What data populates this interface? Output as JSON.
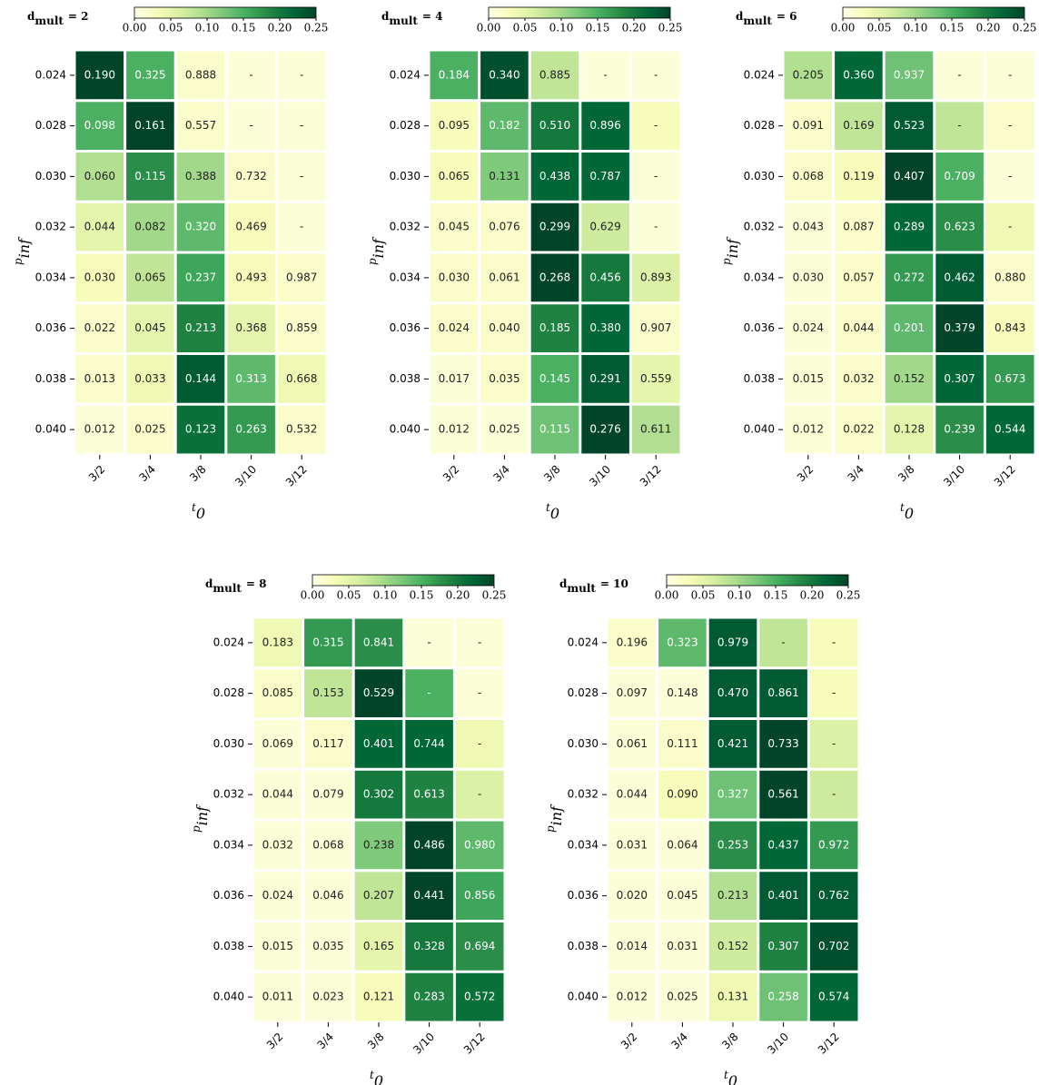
{
  "chart_data": [
    {
      "type": "heatmap",
      "colormap": "YlGn",
      "title": {
        "base": "d",
        "subscript": "mult",
        "suffix": "= 2"
      },
      "ylabel": {
        "base": "p",
        "subscript": "inf"
      },
      "xlabel": {
        "base": "t",
        "subscript": "0"
      },
      "y_categories": [
        "0.024",
        "0.028",
        "0.030",
        "0.032",
        "0.034",
        "0.036",
        "0.038",
        "0.040"
      ],
      "x_categories": [
        "3/2",
        "3/4",
        "3/8",
        "3/10",
        "3/12"
      ],
      "clim": [
        0,
        0.25
      ],
      "cticks": [
        {
          "value": 0,
          "label": "0.00"
        },
        {
          "value": 0.05,
          "label": "0.05"
        },
        {
          "value": 0.1,
          "label": "0.10"
        },
        {
          "value": 0.15,
          "label": "0.15"
        },
        {
          "value": 0.2,
          "label": "0.20"
        },
        {
          "value": 0.25,
          "label": "0.25"
        }
      ],
      "values": [
        [
          0.25,
          0.15,
          0.02,
          0.01,
          0.01
        ],
        [
          0.15,
          0.25,
          0.02,
          0.01,
          0.01
        ],
        [
          0.09,
          0.18,
          0.1,
          0.02,
          0.01
        ],
        [
          0.05,
          0.1,
          0.14,
          0.03,
          0.01
        ],
        [
          0.03,
          0.08,
          0.16,
          0.03,
          0.02
        ],
        [
          0.02,
          0.05,
          0.19,
          0.05,
          0.02
        ],
        [
          0.02,
          0.04,
          0.23,
          0.14,
          0.04
        ],
        [
          0.01,
          0.02,
          0.21,
          0.17,
          0.02
        ]
      ],
      "cell_labels": [
        [
          "0.190",
          "0.325",
          "0.888",
          "-",
          "-"
        ],
        [
          "0.098",
          "0.161",
          "0.557",
          "-",
          "-"
        ],
        [
          "0.060",
          "0.115",
          "0.388",
          "0.732",
          "-"
        ],
        [
          "0.044",
          "0.082",
          "0.320",
          "0.469",
          "-"
        ],
        [
          "0.030",
          "0.065",
          "0.237",
          "0.493",
          "0.987"
        ],
        [
          "0.022",
          "0.045",
          "0.213",
          "0.368",
          "0.859"
        ],
        [
          "0.013",
          "0.033",
          "0.144",
          "0.313",
          "0.668"
        ],
        [
          "0.012",
          "0.025",
          "0.123",
          "0.263",
          "0.532"
        ]
      ]
    },
    {
      "type": "heatmap",
      "colormap": "YlGn",
      "title": {
        "base": "d",
        "subscript": "mult",
        "suffix": "= 4"
      },
      "ylabel": {
        "base": "p",
        "subscript": "inf"
      },
      "xlabel": {
        "base": "t",
        "subscript": "0"
      },
      "y_categories": [
        "0.024",
        "0.028",
        "0.030",
        "0.032",
        "0.034",
        "0.036",
        "0.038",
        "0.040"
      ],
      "x_categories": [
        "3/2",
        "3/4",
        "3/8",
        "3/10",
        "3/12"
      ],
      "clim": [
        0,
        0.25
      ],
      "cticks": [
        {
          "value": 0,
          "label": "0.00"
        },
        {
          "value": 0.05,
          "label": "0.05"
        },
        {
          "value": 0.1,
          "label": "0.10"
        },
        {
          "value": 0.15,
          "label": "0.15"
        },
        {
          "value": 0.2,
          "label": "0.20"
        },
        {
          "value": 0.25,
          "label": "0.25"
        }
      ],
      "values": [
        [
          0.15,
          0.24,
          0.08,
          0.01,
          0.01
        ],
        [
          0.03,
          0.14,
          0.2,
          0.22,
          0.03
        ],
        [
          0.03,
          0.12,
          0.22,
          0.22,
          0.01
        ],
        [
          0.02,
          0.02,
          0.25,
          0.07,
          0.01
        ],
        [
          0.02,
          0.02,
          0.25,
          0.2,
          0.06
        ],
        [
          0.02,
          0.02,
          0.19,
          0.22,
          0.02
        ],
        [
          0.01,
          0.02,
          0.15,
          0.23,
          0.05
        ],
        [
          0.01,
          0.01,
          0.13,
          0.25,
          0.09
        ]
      ],
      "cell_labels": [
        [
          "0.184",
          "0.340",
          "0.885",
          "-",
          "-"
        ],
        [
          "0.095",
          "0.182",
          "0.510",
          "0.896",
          "-"
        ],
        [
          "0.065",
          "0.131",
          "0.438",
          "0.787",
          "-"
        ],
        [
          "0.045",
          "0.076",
          "0.299",
          "0.629",
          "-"
        ],
        [
          "0.030",
          "0.061",
          "0.268",
          "0.456",
          "0.893"
        ],
        [
          "0.024",
          "0.040",
          "0.185",
          "0.380",
          "0.907"
        ],
        [
          "0.017",
          "0.035",
          "0.145",
          "0.291",
          "0.559"
        ],
        [
          "0.012",
          "0.025",
          "0.115",
          "0.276",
          "0.611"
        ]
      ]
    },
    {
      "type": "heatmap",
      "colormap": "YlGn",
      "title": {
        "base": "d",
        "subscript": "mult",
        "suffix": "= 6"
      },
      "ylabel": {
        "base": "p",
        "subscript": "inf"
      },
      "xlabel": {
        "base": "t",
        "subscript": "0"
      },
      "y_categories": [
        "0.024",
        "0.028",
        "0.030",
        "0.032",
        "0.034",
        "0.036",
        "0.038",
        "0.040"
      ],
      "x_categories": [
        "3/2",
        "3/4",
        "3/8",
        "3/10",
        "3/12"
      ],
      "clim": [
        0,
        0.25
      ],
      "cticks": [
        {
          "value": 0,
          "label": "0.00"
        },
        {
          "value": 0.05,
          "label": "0.05"
        },
        {
          "value": 0.1,
          "label": "0.10"
        },
        {
          "value": 0.15,
          "label": "0.15"
        },
        {
          "value": 0.2,
          "label": "0.20"
        },
        {
          "value": 0.25,
          "label": "0.25"
        }
      ],
      "values": [
        [
          0.09,
          0.22,
          0.13,
          0.01,
          0.01
        ],
        [
          0.02,
          0.08,
          0.23,
          0.08,
          0.02
        ],
        [
          0.02,
          0.03,
          0.25,
          0.15,
          0.01
        ],
        [
          0.01,
          0.02,
          0.22,
          0.18,
          0.04
        ],
        [
          0.01,
          0.02,
          0.17,
          0.23,
          0.02
        ],
        [
          0.01,
          0.02,
          0.14,
          0.25,
          0.03
        ],
        [
          0.01,
          0.02,
          0.1,
          0.22,
          0.17
        ],
        [
          0.01,
          0.02,
          0.05,
          0.18,
          0.22
        ]
      ],
      "cell_labels": [
        [
          "0.205",
          "0.360",
          "0.937",
          "-",
          "-"
        ],
        [
          "0.091",
          "0.169",
          "0.523",
          "-",
          "-"
        ],
        [
          "0.068",
          "0.119",
          "0.407",
          "0.709",
          "-"
        ],
        [
          "0.043",
          "0.087",
          "0.289",
          "0.623",
          "-"
        ],
        [
          "0.030",
          "0.057",
          "0.272",
          "0.462",
          "0.880"
        ],
        [
          "0.024",
          "0.044",
          "0.201",
          "0.379",
          "0.843"
        ],
        [
          "0.015",
          "0.032",
          "0.152",
          "0.307",
          "0.673"
        ],
        [
          "0.012",
          "0.022",
          "0.128",
          "0.239",
          "0.544"
        ]
      ]
    },
    {
      "type": "heatmap",
      "colormap": "YlGn",
      "title": {
        "base": "d",
        "subscript": "mult",
        "suffix": "= 8"
      },
      "ylabel": {
        "base": "p",
        "subscript": "inf"
      },
      "xlabel": {
        "base": "t",
        "subscript": "0"
      },
      "y_categories": [
        "0.024",
        "0.028",
        "0.030",
        "0.032",
        "0.034",
        "0.036",
        "0.038",
        "0.040"
      ],
      "x_categories": [
        "3/2",
        "3/4",
        "3/8",
        "3/10",
        "3/12"
      ],
      "clim": [
        0,
        0.25
      ],
      "cticks": [
        {
          "value": 0,
          "label": "0.00"
        },
        {
          "value": 0.05,
          "label": "0.05"
        },
        {
          "value": 0.1,
          "label": "0.10"
        },
        {
          "value": 0.15,
          "label": "0.15"
        },
        {
          "value": 0.2,
          "label": "0.20"
        },
        {
          "value": 0.25,
          "label": "0.25"
        }
      ],
      "values": [
        [
          0.04,
          0.17,
          0.18,
          0.01,
          0.01
        ],
        [
          0.02,
          0.08,
          0.25,
          0.15,
          0.01
        ],
        [
          0.01,
          0.02,
          0.22,
          0.22,
          0.04
        ],
        [
          0.01,
          0.01,
          0.2,
          0.19,
          0.06
        ],
        [
          0.01,
          0.01,
          0.12,
          0.25,
          0.14
        ],
        [
          0.01,
          0.01,
          0.08,
          0.25,
          0.16
        ],
        [
          0.01,
          0.01,
          0.05,
          0.2,
          0.18
        ],
        [
          0.01,
          0.01,
          0.03,
          0.19,
          0.21
        ]
      ],
      "cell_labels": [
        [
          "0.183",
          "0.315",
          "0.841",
          "-",
          "-"
        ],
        [
          "0.085",
          "0.153",
          "0.529",
          "-",
          "-"
        ],
        [
          "0.069",
          "0.117",
          "0.401",
          "0.744",
          "-"
        ],
        [
          "0.044",
          "0.079",
          "0.302",
          "0.613",
          "-"
        ],
        [
          "0.032",
          "0.068",
          "0.238",
          "0.486",
          "0.980"
        ],
        [
          "0.024",
          "0.046",
          "0.207",
          "0.441",
          "0.856"
        ],
        [
          "0.015",
          "0.035",
          "0.165",
          "0.328",
          "0.694"
        ],
        [
          "0.011",
          "0.023",
          "0.121",
          "0.283",
          "0.572"
        ]
      ]
    },
    {
      "type": "heatmap",
      "colormap": "YlGn",
      "title": {
        "base": "d",
        "subscript": "mult",
        "suffix": "= 10"
      },
      "ylabel": {
        "base": "p",
        "subscript": "inf"
      },
      "xlabel": {
        "base": "t",
        "subscript": "0"
      },
      "y_categories": [
        "0.024",
        "0.028",
        "0.030",
        "0.032",
        "0.034",
        "0.036",
        "0.038",
        "0.040"
      ],
      "x_categories": [
        "3/2",
        "3/4",
        "3/8",
        "3/10",
        "3/12"
      ],
      "clim": [
        0,
        0.25
      ],
      "cticks": [
        {
          "value": 0,
          "label": "0.00"
        },
        {
          "value": 0.05,
          "label": "0.05"
        },
        {
          "value": 0.1,
          "label": "0.10"
        },
        {
          "value": 0.15,
          "label": "0.15"
        },
        {
          "value": 0.2,
          "label": "0.20"
        },
        {
          "value": 0.25,
          "label": "0.25"
        }
      ],
      "values": [
        [
          0.02,
          0.14,
          0.23,
          0.08,
          0.03
        ],
        [
          0.01,
          0.01,
          0.23,
          0.23,
          0.03
        ],
        [
          0.01,
          0.02,
          0.23,
          0.25,
          0.06
        ],
        [
          0.01,
          0.03,
          0.13,
          0.25,
          0.07
        ],
        [
          0.01,
          0.01,
          0.18,
          0.22,
          0.17
        ],
        [
          0.01,
          0.01,
          0.09,
          0.23,
          0.23
        ],
        [
          0.01,
          0.01,
          0.07,
          0.19,
          0.24
        ],
        [
          0.01,
          0.01,
          0.04,
          0.13,
          0.22
        ]
      ],
      "cell_labels": [
        [
          "0.196",
          "0.323",
          "0.979",
          "-",
          "-"
        ],
        [
          "0.097",
          "0.148",
          "0.470",
          "0.861",
          "-"
        ],
        [
          "0.061",
          "0.111",
          "0.421",
          "0.733",
          "-"
        ],
        [
          "0.044",
          "0.090",
          "0.327",
          "0.561",
          "-"
        ],
        [
          "0.031",
          "0.064",
          "0.253",
          "0.437",
          "0.972"
        ],
        [
          "0.020",
          "0.045",
          "0.213",
          "0.401",
          "0.762"
        ],
        [
          "0.014",
          "0.031",
          "0.152",
          "0.307",
          "0.702"
        ],
        [
          "0.012",
          "0.025",
          "0.131",
          "0.258",
          "0.574"
        ]
      ]
    }
  ]
}
